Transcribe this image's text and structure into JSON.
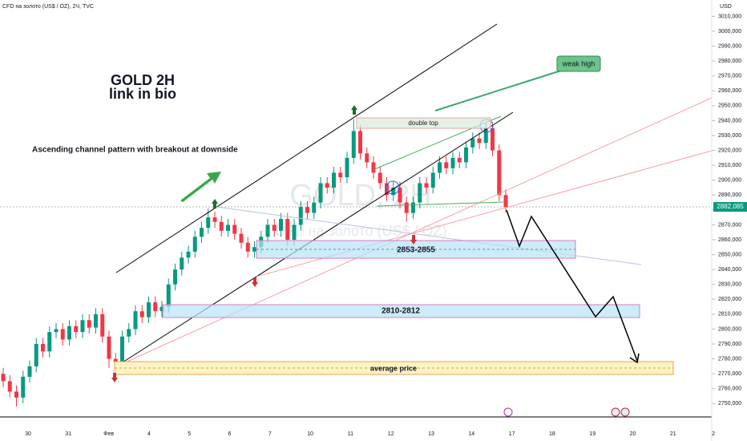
{
  "header": "CFD на золото (US$ / OZ), 2Ч, TVC",
  "watermark": {
    "symbol": "GOLD, 2H",
    "name": "CFD на золото (US$ / OZ)"
  },
  "annotations": {
    "title": "GOLD 2H",
    "subtitle": "link in bio",
    "pattern": "Ascending channel pattern with breakout at downside",
    "weak_high": "weak high",
    "double_top": "double top",
    "zone1": "2853-2855",
    "zone2": "2810-2812",
    "average": "average price"
  },
  "price_axis": {
    "currency": "USD",
    "last_price": "2882,085"
  },
  "chart_data": {
    "type": "candlestick",
    "categories": [
      "30",
      "31",
      "Фев",
      "4",
      "5",
      "6",
      "7",
      "10",
      "11",
      "12",
      "13",
      "14",
      "17",
      "18",
      "19",
      "20",
      "21",
      "2"
    ],
    "ylim": [
      2741,
      3021
    ],
    "yticks": [
      {
        "value": 2750,
        "label": "2750,000"
      },
      {
        "value": 2760,
        "label": "2760,000"
      },
      {
        "value": 2770,
        "label": "2770,000"
      },
      {
        "value": 2780,
        "label": "2780,000"
      },
      {
        "value": 2790,
        "label": "2790,000"
      },
      {
        "value": 2800,
        "label": "2800,000"
      },
      {
        "value": 2810,
        "label": "2810,000"
      },
      {
        "value": 2820,
        "label": "2820,000"
      },
      {
        "value": 2830,
        "label": "2830,000"
      },
      {
        "value": 2840,
        "label": "2840,000"
      },
      {
        "value": 2850,
        "label": "2850,000"
      },
      {
        "value": 2860,
        "label": "2860,000"
      },
      {
        "value": 2870,
        "label": "2870,000"
      },
      {
        "value": 2880,
        "label": "2880,000"
      },
      {
        "value": 2890,
        "label": "2890,000"
      },
      {
        "value": 2900,
        "label": "2900,000"
      },
      {
        "value": 2910,
        "label": "2910,000"
      },
      {
        "value": 2920,
        "label": "2920,000"
      },
      {
        "value": 2930,
        "label": "2930,000"
      },
      {
        "value": 2940,
        "label": "2940,000"
      },
      {
        "value": 2950,
        "label": "2950,000"
      },
      {
        "value": 2960,
        "label": "2960,000"
      },
      {
        "value": 2970,
        "label": "2970,000"
      },
      {
        "value": 2980,
        "label": "2980,000"
      },
      {
        "value": 2990,
        "label": "2990,000"
      },
      {
        "value": 3000,
        "label": "3000,000"
      },
      {
        "value": 3010,
        "label": "3010,000"
      }
    ],
    "up_color": "#089981",
    "down_color": "#f23645",
    "open": [
      2770,
      2765,
      2758,
      2754,
      2768,
      2775,
      2790,
      2785,
      2798,
      2800,
      2793,
      2802,
      2798,
      2806,
      2801,
      2810,
      2795,
      2780,
      2778,
      2795,
      2800,
      2812,
      2808,
      2818,
      2812,
      2815,
      2830,
      2840,
      2848,
      2852,
      2862,
      2868,
      2875,
      2872,
      2866,
      2870,
      2864,
      2858,
      2852,
      2855,
      2862,
      2870,
      2866,
      2874,
      2860,
      2870,
      2882,
      2878,
      2885,
      2898,
      2895,
      2905,
      2902,
      2915,
      2933,
      2918,
      2912,
      2905,
      2898,
      2890,
      2895,
      2885,
      2878,
      2885,
      2898,
      2895,
      2905,
      2912,
      2908,
      2915,
      2912,
      2922,
      2928,
      2925,
      2935,
      2920,
      2890
    ],
    "high": [
      2774,
      2769,
      2762,
      2772,
      2779,
      2794,
      2794,
      2802,
      2804,
      2804,
      2806,
      2806,
      2810,
      2810,
      2814,
      2814,
      2799,
      2784,
      2799,
      2804,
      2816,
      2816,
      2822,
      2822,
      2819,
      2834,
      2844,
      2852,
      2856,
      2866,
      2872,
      2881,
      2879,
      2876,
      2874,
      2874,
      2868,
      2862,
      2859,
      2866,
      2874,
      2874,
      2878,
      2878,
      2874,
      2886,
      2886,
      2889,
      2902,
      2902,
      2909,
      2909,
      2919,
      2941,
      2937,
      2922,
      2916,
      2909,
      2902,
      2899,
      2899,
      2889,
      2889,
      2902,
      2902,
      2909,
      2916,
      2916,
      2919,
      2919,
      2926,
      2932,
      2932,
      2939,
      2939,
      2924,
      2894
    ],
    "low": [
      2761,
      2754,
      2748,
      2750,
      2764,
      2771,
      2781,
      2781,
      2794,
      2789,
      2789,
      2794,
      2794,
      2797,
      2797,
      2791,
      2774,
      2773,
      2774,
      2791,
      2796,
      2804,
      2804,
      2808,
      2808,
      2811,
      2826,
      2836,
      2844,
      2848,
      2858,
      2864,
      2868,
      2862,
      2862,
      2860,
      2854,
      2848,
      2848,
      2851,
      2858,
      2862,
      2862,
      2856,
      2856,
      2866,
      2874,
      2874,
      2881,
      2891,
      2891,
      2898,
      2898,
      2911,
      2914,
      2908,
      2901,
      2894,
      2886,
      2886,
      2881,
      2872,
      2874,
      2881,
      2891,
      2891,
      2901,
      2904,
      2904,
      2908,
      2908,
      2918,
      2921,
      2921,
      2916,
      2886,
      2878
    ],
    "close": [
      2765,
      2758,
      2754,
      2768,
      2775,
      2790,
      2785,
      2798,
      2800,
      2793,
      2802,
      2798,
      2806,
      2801,
      2810,
      2795,
      2780,
      2778,
      2795,
      2800,
      2812,
      2808,
      2818,
      2812,
      2815,
      2830,
      2840,
      2848,
      2852,
      2862,
      2868,
      2875,
      2872,
      2866,
      2870,
      2864,
      2858,
      2852,
      2855,
      2862,
      2870,
      2866,
      2874,
      2860,
      2870,
      2882,
      2878,
      2885,
      2898,
      2895,
      2905,
      2902,
      2915,
      2933,
      2918,
      2912,
      2905,
      2898,
      2890,
      2895,
      2885,
      2878,
      2885,
      2898,
      2895,
      2905,
      2912,
      2908,
      2915,
      2912,
      2922,
      2928,
      2925,
      2935,
      2920,
      2890,
      2882
    ]
  }
}
